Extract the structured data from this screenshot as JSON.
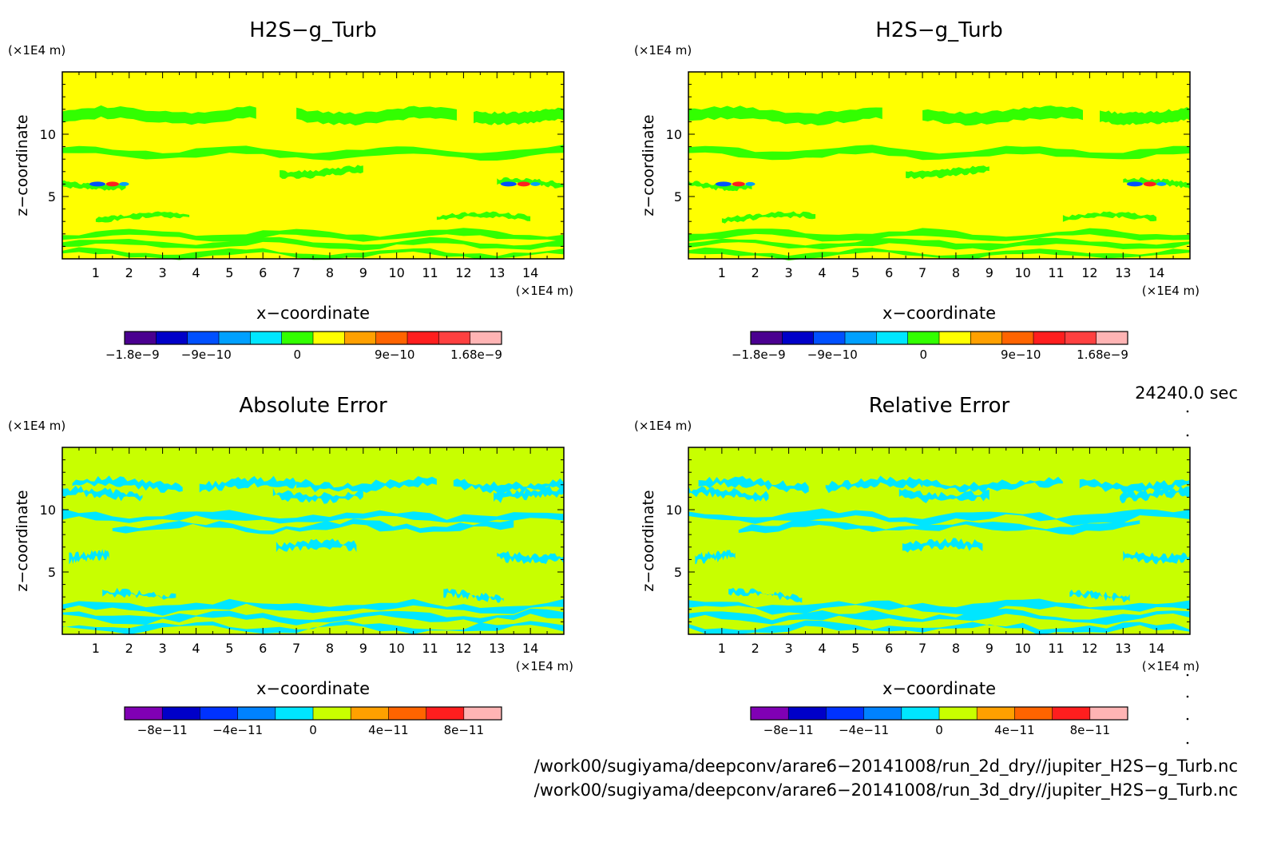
{
  "chart_data": [
    {
      "type": "heatmap",
      "title": "H2S−g_Turb",
      "xlabel": "x−coordinate",
      "ylabel": "z−coordinate",
      "x_unit": "(×1E4 m)",
      "y_unit": "(×1E4 m)",
      "x_ticks": [
        "1",
        "2",
        "3",
        "4",
        "5",
        "6",
        "7",
        "8",
        "9",
        "10",
        "11",
        "12",
        "13",
        "14"
      ],
      "y_ticks": [
        "5",
        "10"
      ],
      "xlim": [
        0,
        15
      ],
      "ylim": [
        0,
        15
      ],
      "field": "green contour bands on yellow background near z = 0.3-3.5, 6, 8.5, 11.5; red/blue extrema at x≈1.5 and x≈13.7, z≈6",
      "colorbar": {
        "colors": [
          "#4a0090",
          "#0000c8",
          "#0050ff",
          "#00a0ff",
          "#00e6ff",
          "#32ff00",
          "#ffff00",
          "#ffa000",
          "#ff6400",
          "#ff1e1e",
          "#ff4040",
          "#ffb4b4"
        ],
        "labels": [
          "−1.8e−9",
          "−9e−10",
          "0",
          "9e−10",
          "1.68e−9"
        ]
      }
    },
    {
      "type": "heatmap",
      "title": "H2S−g_Turb",
      "xlabel": "x−coordinate",
      "ylabel": "z−coordinate",
      "x_unit": "(×1E4 m)",
      "y_unit": "(×1E4 m)",
      "x_ticks": [
        "1",
        "2",
        "3",
        "4",
        "5",
        "6",
        "7",
        "8",
        "9",
        "10",
        "11",
        "12",
        "13",
        "14"
      ],
      "y_ticks": [
        "5",
        "10"
      ],
      "xlim": [
        0,
        15
      ],
      "ylim": [
        0,
        15
      ],
      "colorbar": {
        "colors": [
          "#4a0090",
          "#0000c8",
          "#0050ff",
          "#00a0ff",
          "#00e6ff",
          "#32ff00",
          "#ffff00",
          "#ffa000",
          "#ff6400",
          "#ff1e1e",
          "#ff4040",
          "#ffb4b4"
        ],
        "labels": [
          "−1.8e−9",
          "−9e−10",
          "0",
          "9e−10",
          "1.68e−9"
        ]
      }
    },
    {
      "type": "heatmap",
      "title": "Absolute Error",
      "xlabel": "x−coordinate",
      "ylabel": "z−coordinate",
      "x_unit": "(×1E4 m)",
      "y_unit": "(×1E4 m)",
      "x_ticks": [
        "1",
        "2",
        "3",
        "4",
        "5",
        "6",
        "7",
        "8",
        "9",
        "10",
        "11",
        "12",
        "13",
        "14"
      ],
      "y_ticks": [
        "5",
        "10"
      ],
      "xlim": [
        0,
        15
      ],
      "ylim": [
        0,
        15
      ],
      "colorbar": {
        "colors": [
          "#8000b4",
          "#0000c8",
          "#0032ff",
          "#0082ff",
          "#00e6ff",
          "#c8ff00",
          "#ffa000",
          "#ff6400",
          "#ff1e1e",
          "#ffb4b4"
        ],
        "labels": [
          "−8e−11",
          "−4e−11",
          "0",
          "4e−11",
          "8e−11"
        ]
      }
    },
    {
      "type": "heatmap",
      "title": "Relative Error",
      "xlabel": "x−coordinate",
      "ylabel": "z−coordinate",
      "x_unit": "(×1E4 m)",
      "y_unit": "(×1E4 m)",
      "x_ticks": [
        "1",
        "2",
        "3",
        "4",
        "5",
        "6",
        "7",
        "8",
        "9",
        "10",
        "11",
        "12",
        "13",
        "14"
      ],
      "y_ticks": [
        "5",
        "10"
      ],
      "xlim": [
        0,
        15
      ],
      "ylim": [
        0,
        15
      ],
      "colorbar": {
        "colors": [
          "#8000b4",
          "#0000c8",
          "#0032ff",
          "#0082ff",
          "#00e6ff",
          "#c8ff00",
          "#ffa000",
          "#ff6400",
          "#ff1e1e",
          "#ffb4b4"
        ],
        "labels": [
          "−8e−11",
          "−4e−11",
          "0",
          "4e−11",
          "8e−11"
        ]
      }
    }
  ],
  "time_label": "24240.0 sec",
  "file_paths": [
    "/work00/sugiyama/deepconv/arare6−20141008/run_2d_dry//jupiter_H2S−g_Turb.nc",
    "/work00/sugiyama/deepconv/arare6−20141008/run_3d_dry//jupiter_H2S−g_Turb.nc"
  ],
  "colors": {
    "field_bg_top": "#ffff00",
    "field_band_top": "#32ff00",
    "field_bg_bottom": "#c8ff00",
    "field_band_bottom": "#00e6ff"
  }
}
